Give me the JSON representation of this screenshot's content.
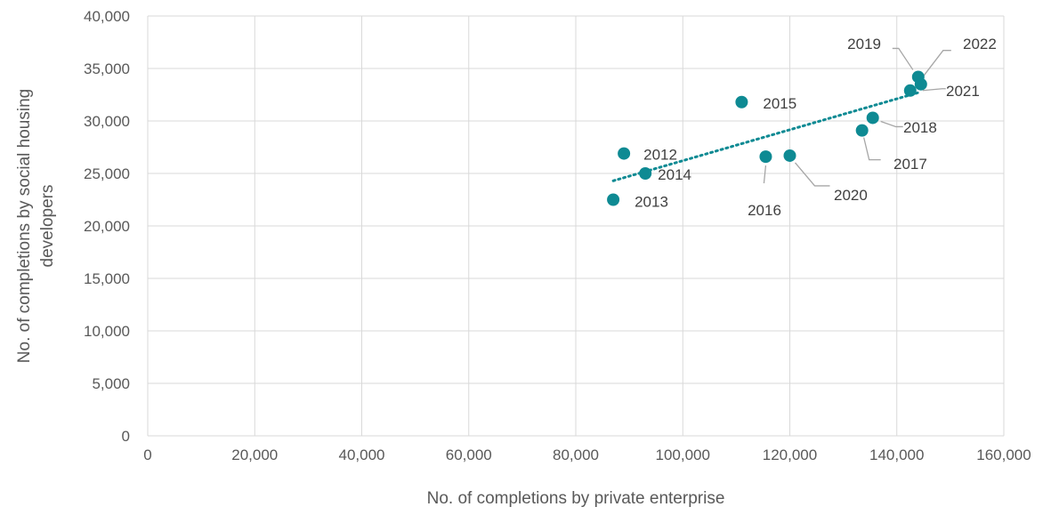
{
  "chart_data": {
    "type": "scatter",
    "title": "",
    "xlabel": "No. of completions by private enterprise",
    "ylabel_lines": [
      "No. of completions by social housing",
      "developers"
    ],
    "xlim": [
      0,
      160000
    ],
    "ylim": [
      0,
      40000
    ],
    "x_ticks": [
      "0",
      "20,000",
      "40,000",
      "60,000",
      "80,000",
      "100,000",
      "120,000",
      "140,000",
      "160,000"
    ],
    "y_ticks": [
      "0",
      "5,000",
      "10,000",
      "15,000",
      "20,000",
      "25,000",
      "30,000",
      "35,000",
      "40,000"
    ],
    "grid": true,
    "legend": "none",
    "marker_color": "#0E8A93",
    "trendline": {
      "type": "linear",
      "style": "dotted",
      "color": "#0E8A93",
      "x_range": [
        87000,
        144000
      ],
      "y_range": [
        24300,
        32700
      ]
    },
    "points": [
      {
        "label": "2012",
        "x": 89000,
        "y": 26900
      },
      {
        "label": "2013",
        "x": 87000,
        "y": 22500
      },
      {
        "label": "2014",
        "x": 93000,
        "y": 25000
      },
      {
        "label": "2015",
        "x": 111000,
        "y": 31800
      },
      {
        "label": "2016",
        "x": 115500,
        "y": 26600
      },
      {
        "label": "2017",
        "x": 133500,
        "y": 29100
      },
      {
        "label": "2018",
        "x": 135500,
        "y": 30300
      },
      {
        "label": "2019",
        "x": 144000,
        "y": 34200
      },
      {
        "label": "2020",
        "x": 120000,
        "y": 26700
      },
      {
        "label": "2021",
        "x": 142500,
        "y": 32900
      },
      {
        "label": "2022",
        "x": 144500,
        "y": 33500
      }
    ]
  }
}
